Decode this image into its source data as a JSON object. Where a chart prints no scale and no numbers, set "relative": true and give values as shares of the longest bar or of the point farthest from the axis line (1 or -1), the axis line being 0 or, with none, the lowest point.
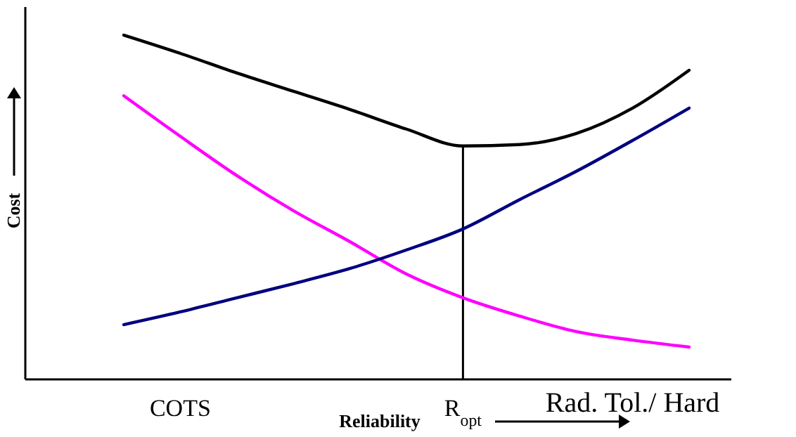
{
  "chart_data": {
    "type": "line",
    "relative": true,
    "xlabel": "Reliability",
    "ylabel": "Cost",
    "categories": [
      null,
      "COTS",
      null,
      null,
      null,
      null,
      "R$_{opt}$",
      null,
      null,
      "Rad. Tol./ Hard",
      null
    ],
    "series": [
      {
        "color": "#000000",
        "values": [
          1.0,
          0.947,
          0.89,
          0.837,
          0.784,
          0.727,
          0.678,
          0.682,
          0.714,
          0.788,
          0.898
        ]
      },
      {
        "color": "#ff00ff",
        "values": [
          0.824,
          0.706,
          0.592,
          0.49,
          0.4,
          0.306,
          0.237,
          0.184,
          0.139,
          0.114,
          0.094
        ]
      },
      {
        "color": "#000080",
        "values": [
          0.159,
          0.196,
          0.237,
          0.278,
          0.322,
          0.376,
          0.437,
          0.522,
          0.604,
          0.694,
          0.788
        ]
      }
    ],
    "ref_lines": [
      {
        "axis": "x",
        "value": "R$_{opt}$",
        "color": "#000000"
      }
    ],
    "marker": "none",
    "line_style": "solid"
  }
}
